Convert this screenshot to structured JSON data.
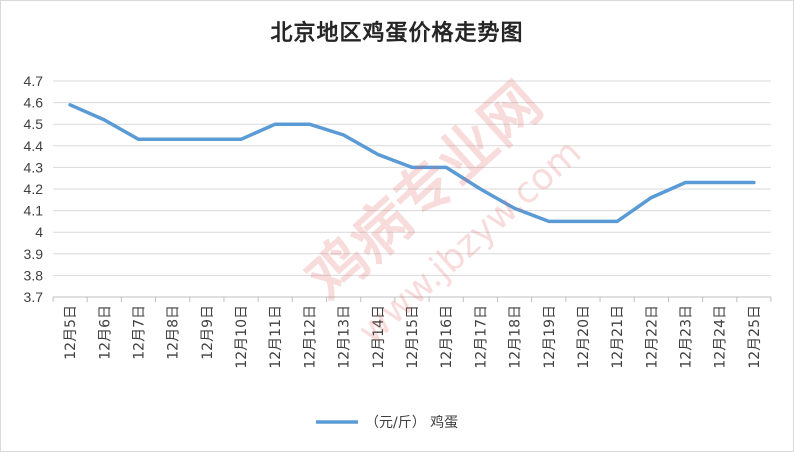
{
  "chart_data": {
    "type": "line",
    "title": "北京地区鸡蛋价格走势图",
    "categories": [
      "12月5日",
      "12月6日",
      "12月7日",
      "12月8日",
      "12月9日",
      "12月10日",
      "12月11日",
      "12月12日",
      "12月13日",
      "12月14日",
      "12月15日",
      "12月16日",
      "12月17日",
      "12月18日",
      "12月19日",
      "12月20日",
      "12月21日",
      "12月22日",
      "12月23日",
      "12月24日",
      "12月25日"
    ],
    "series": [
      {
        "name": "（元/斤） 鸡蛋",
        "values": [
          4.59,
          4.52,
          4.43,
          4.43,
          4.43,
          4.43,
          4.5,
          4.5,
          4.45,
          4.36,
          4.3,
          4.3,
          4.2,
          4.11,
          4.05,
          4.05,
          4.05,
          4.16,
          4.23,
          4.23,
          4.23
        ]
      }
    ],
    "y_ticks": [
      "3.7",
      "3.8",
      "3.9",
      "4",
      "4.1",
      "4.2",
      "4.3",
      "4.4",
      "4.5",
      "4.6",
      "4.7"
    ],
    "ylim": [
      3.7,
      4.7
    ],
    "grid": true,
    "legend_position": "bottom",
    "line_color": "#5b9bd5",
    "grid_color": "#d9d9d9",
    "watermark_text": "鸡病专业网",
    "watermark_url": "www.jbzyw.com"
  }
}
